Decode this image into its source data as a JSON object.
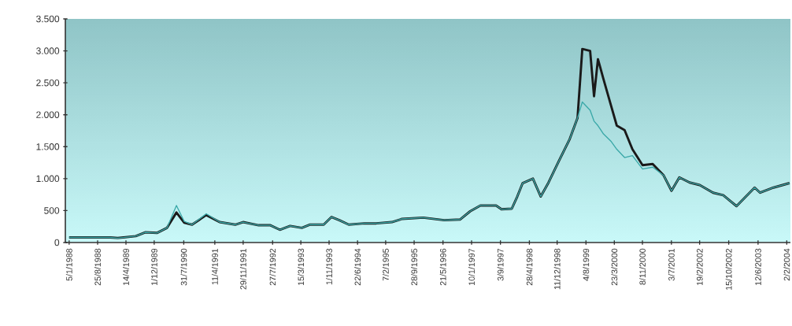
{
  "chart_data": {
    "type": "line",
    "x": [
      "1988-01-05",
      "1988-12-03",
      "1989-02-05",
      "1989-07-03",
      "1989-09-18",
      "1989-12-23",
      "1990-03-16",
      "1990-06-01",
      "1990-08-04",
      "1990-10-07",
      "1991-01-31",
      "1991-05-20",
      "1991-09-25",
      "1991-11-28",
      "1992-04-04",
      "1992-07-09",
      "1992-09-24",
      "1992-12-17",
      "1993-03-23",
      "1993-05-26",
      "1993-09-18",
      "1993-11-21",
      "1994-01-24",
      "1994-04-11",
      "1994-08-17",
      "1994-11-22",
      "1995-03-30",
      "1995-06-21",
      "1995-12-11",
      "1996-06-01",
      "1996-10-07",
      "1996-12-30",
      "1997-03-23",
      "1997-07-29",
      "1997-09-12",
      "1997-12-05",
      "1998-01-19",
      "1998-03-04",
      "1998-05-27",
      "1998-07-30",
      "1998-10-02",
      "1998-12-24",
      "1999-03-24",
      "1999-05-27",
      "1999-07-05",
      "1999-09-07",
      "1999-10-09",
      "1999-11-10",
      "1999-12-25",
      "2000-02-27",
      "2000-04-12",
      "2000-06-15",
      "2000-08-18",
      "2000-11-09",
      "2001-01-31",
      "2001-05-01",
      "2001-07-04",
      "2001-09-06",
      "2001-11-29",
      "2002-02-20",
      "2002-06-09",
      "2002-08-31",
      "2002-12-18",
      "2003-05-15",
      "2003-06-29",
      "2003-10-16",
      "2004-02-25"
    ],
    "series": [
      {
        "color": "#1a1a1a",
        "values": [
          80,
          80,
          70,
          100,
          160,
          150,
          230,
          470,
          310,
          280,
          430,
          320,
          280,
          320,
          270,
          270,
          200,
          260,
          230,
          280,
          280,
          400,
          350,
          280,
          300,
          300,
          320,
          370,
          390,
          350,
          360,
          490,
          580,
          580,
          520,
          530,
          720,
          930,
          1000,
          720,
          940,
          1270,
          1620,
          1950,
          3030,
          3000,
          2290,
          2870,
          2560,
          2130,
          1830,
          1760,
          1460,
          1210,
          1230,
          1050,
          810,
          1020,
          940,
          900,
          780,
          740,
          570,
          860,
          780,
          860,
          930
        ]
      },
      {
        "color": "#3aa8a8",
        "values": [
          80,
          80,
          70,
          100,
          160,
          150,
          230,
          580,
          330,
          280,
          450,
          320,
          280,
          320,
          270,
          270,
          200,
          260,
          230,
          280,
          280,
          400,
          350,
          280,
          300,
          300,
          320,
          370,
          390,
          350,
          360,
          490,
          580,
          580,
          520,
          530,
          720,
          930,
          1000,
          720,
          940,
          1270,
          1620,
          1950,
          2200,
          2070,
          1900,
          1830,
          1700,
          1580,
          1460,
          1330,
          1360,
          1150,
          1180,
          1050,
          810,
          1020,
          940,
          900,
          780,
          740,
          570,
          860,
          780,
          860,
          930
        ]
      }
    ],
    "xlim": [
      "1987-12-05",
      "2004-03-03"
    ],
    "xticks": [
      {
        "value": "1988-01-05",
        "label": "5/1/1988"
      },
      {
        "value": "1988-08-25",
        "label": "25/8/1988"
      },
      {
        "value": "1989-04-14",
        "label": "14/4/1989"
      },
      {
        "value": "1989-12-01",
        "label": "1/12/1989"
      },
      {
        "value": "1990-07-31",
        "label": "31/7/1990"
      },
      {
        "value": "1991-04-11",
        "label": "11/4/1991"
      },
      {
        "value": "1991-11-29",
        "label": "29/11/1991"
      },
      {
        "value": "1992-07-27",
        "label": "27/7/1992"
      },
      {
        "value": "1993-03-15",
        "label": "15/3/1993"
      },
      {
        "value": "1993-11-01",
        "label": "1/11/1993"
      },
      {
        "value": "1994-06-22",
        "label": "22/6/1994"
      },
      {
        "value": "1995-02-07",
        "label": "7/2/1995"
      },
      {
        "value": "1995-09-28",
        "label": "28/9/1995"
      },
      {
        "value": "1996-05-21",
        "label": "21/5/1996"
      },
      {
        "value": "1997-01-10",
        "label": "10/1/1997"
      },
      {
        "value": "1997-09-03",
        "label": "3/9/1997"
      },
      {
        "value": "1998-04-28",
        "label": "28/4/1998"
      },
      {
        "value": "1998-12-11",
        "label": "11/12/1998"
      },
      {
        "value": "1999-08-04",
        "label": "4/8/1999"
      },
      {
        "value": "2000-03-23",
        "label": "23/3/2000"
      },
      {
        "value": "2000-11-08",
        "label": "8/11/2000"
      },
      {
        "value": "2001-07-03",
        "label": "3/7/2001"
      },
      {
        "value": "2002-02-19",
        "label": "19/2/2002"
      },
      {
        "value": "2002-10-15",
        "label": "15/10/2002"
      },
      {
        "value": "2003-06-12",
        "label": "12/6/2003"
      },
      {
        "value": "2004-02-02",
        "label": "2/2/2004"
      }
    ],
    "ylim": [
      0,
      3500
    ],
    "yticks": [
      {
        "value": 0,
        "label": "0"
      },
      {
        "value": 500,
        "label": "500"
      },
      {
        "value": 1000,
        "label": "1.000"
      },
      {
        "value": 1500,
        "label": "1.500"
      },
      {
        "value": 2000,
        "label": "2.000"
      },
      {
        "value": 2500,
        "label": "2.500"
      },
      {
        "value": 3000,
        "label": "3.000"
      },
      {
        "value": 3500,
        "label": "3.500"
      }
    ]
  }
}
